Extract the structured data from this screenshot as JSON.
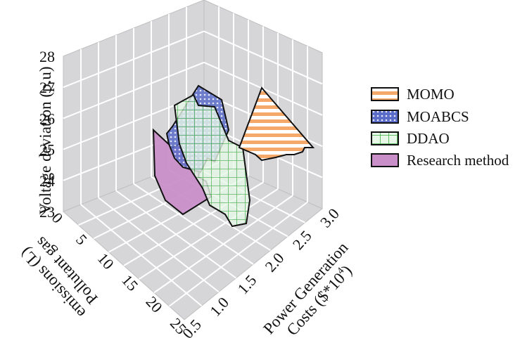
{
  "chart_data": {
    "type": "3d-polygon",
    "x_axis": {
      "label_lines": [
        "Power Generation",
        "Costs ($*10"
      ],
      "label_sup": "4",
      "label_close": ")",
      "ticks": [
        "0.5",
        "1.0",
        "1.5",
        "2.0",
        "2.5",
        "3.0"
      ],
      "range": [
        0.5,
        3.0
      ]
    },
    "y_axis": {
      "label_lines": [
        "Pollutant gas",
        "emissions (L)"
      ],
      "ticks": [
        "0",
        "5",
        "10",
        "15",
        "20",
        "25"
      ],
      "range": [
        0,
        25
      ]
    },
    "z_axis": {
      "label": "Voltage deviation (p.u)",
      "ticks": [
        "23",
        "24",
        "25",
        "26",
        "27",
        "28"
      ],
      "range": [
        23,
        28
      ]
    },
    "grid": true,
    "legend_position": "right",
    "series": [
      {
        "name": "MOMO",
        "color": "#f4a96a",
        "pattern": "horizontal-stripes"
      },
      {
        "name": "MOABCS",
        "color": "#6f7fd8",
        "pattern": "dots"
      },
      {
        "name": "DDAO",
        "color": "#55b85a",
        "pattern": "grid"
      },
      {
        "name": "Research method",
        "color": "#c98fc9",
        "pattern": "solid"
      }
    ]
  }
}
